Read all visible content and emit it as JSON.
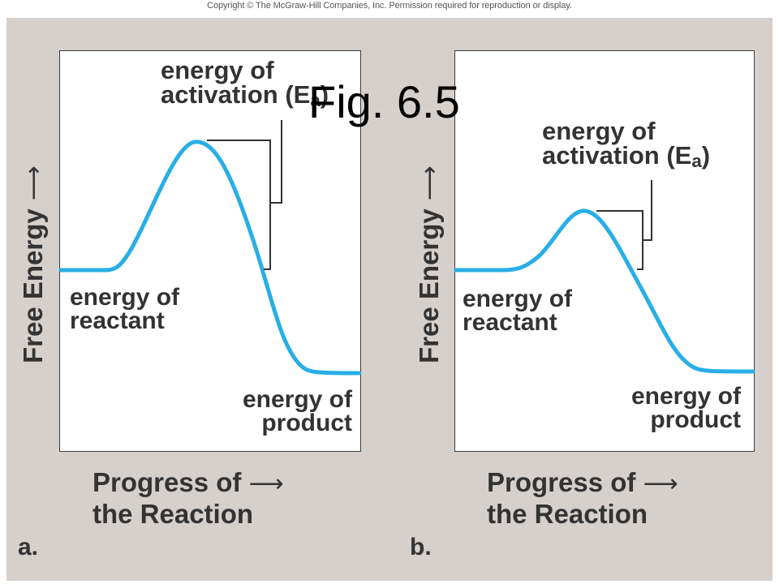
{
  "copyright": "Copyright © The McGraw-Hill Companies, Inc. Permission required for reproduction or display.",
  "figure_title": "Fig. 6.5",
  "panels": [
    {
      "letter": "a.",
      "y_axis_label": "Free Energy",
      "x_axis_label_line1": "Progress of",
      "x_axis_label_line2": "the Reaction",
      "activation_line1": "energy of",
      "activation_line2": "activation (E",
      "activation_sub": "a",
      "activation_close": ")",
      "reactant_line1": "energy of",
      "reactant_line2": "reactant",
      "product_line1": "energy of",
      "product_line2": "product"
    },
    {
      "letter": "b.",
      "y_axis_label": "Free Energy",
      "x_axis_label_line1": "Progress of",
      "x_axis_label_line2": "the Reaction",
      "activation_line1": "energy of",
      "activation_line2": "activation (E",
      "activation_sub": "a",
      "activation_close": ")",
      "reactant_line1": "energy of",
      "reactant_line2": "reactant",
      "product_line1": "energy of",
      "product_line2": "product"
    }
  ],
  "colors": {
    "curve": "#29aee6",
    "background": "#d6d0cd",
    "text": "#333333"
  }
}
